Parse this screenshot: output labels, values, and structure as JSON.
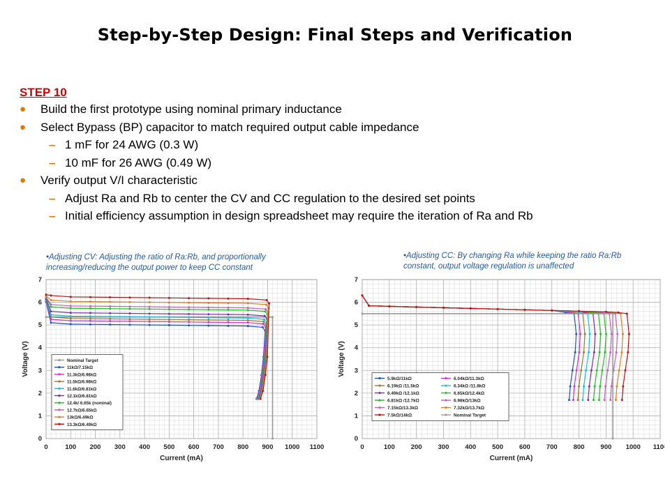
{
  "title": "Step-by-Step Design: Final Steps and Verification",
  "step_label": "STEP 10",
  "bullets": [
    {
      "text": "Build the first prototype using nominal primary inductance"
    },
    {
      "text": "Select Bypass (BP) capacitor to match required output cable impedance",
      "sub": [
        "1 mF for 24 AWG (0.3 W)",
        "10 mF for 26 AWG (0.49 W)"
      ]
    },
    {
      "text": "Verify output V/I characteristic",
      "sub": [
        "Adjust Ra and Rb to center the CV and CC regulation to the desired set points",
        "Initial efficiency assumption in design spreadsheet may require the iteration of Ra and Rb"
      ]
    }
  ],
  "bullet_symbol": "●",
  "sub_bullet_symbol": "–",
  "colors": {
    "step": "#d40000",
    "bullet": "#e07800",
    "caption": "#1f5aa8"
  },
  "chart_data": [
    {
      "type": "line",
      "caption": "•Adjusting CV: Adjusting the ratio of Ra:Rb, and proportionally increasing/reducing  the output power  to keep CC constant",
      "xlabel": "Current (mA)",
      "ylabel": "Voltage (V)",
      "xlim": [
        0,
        1100
      ],
      "ylim": [
        0,
        7
      ],
      "xticks": [
        "0",
        "100",
        "200",
        "300",
        "400",
        "500",
        "600",
        "700",
        "800",
        "900",
        "1000",
        "1100"
      ],
      "yticks": [
        "0",
        "1",
        "2",
        "3",
        "4",
        "5",
        "6",
        "7"
      ],
      "grid": true,
      "legend_position": "bottom-left",
      "series": [
        {
          "name": "Nominal Target",
          "color": "#999999",
          "cv": 5.35,
          "cc": 920,
          "marker": true,
          "target": true
        },
        {
          "name": "11kΩ/7.15kΩ",
          "color": "#1f4fd0",
          "cv": 5.05,
          "cc": 895
        },
        {
          "name": "11.3kΩ/6.98kΩ",
          "color": "#d030d0",
          "cv": 5.2,
          "cc": 897
        },
        {
          "name": "11.5kΩ/6.98kΩ",
          "color": "#9a7a30",
          "cv": 5.3,
          "cc": 899
        },
        {
          "name": "11.6kΩ/6.81kΩ",
          "color": "#10c0e0",
          "cv": 5.4,
          "cc": 901
        },
        {
          "name": "12.1kΩ/6.81kΩ",
          "color": "#7a30a0",
          "cv": 5.55,
          "cc": 903
        },
        {
          "name": "12.4k/ 6.65k (nominal)",
          "color": "#20c020",
          "cv": 5.75,
          "cc": 905
        },
        {
          "name": "12.7kΩ/6.65kΩ",
          "color": "#c060c0",
          "cv": 5.85,
          "cc": 907
        },
        {
          "name": "13kΩ/6.49kΩ",
          "color": "#e08020",
          "cv": 6.05,
          "cc": 909
        },
        {
          "name": "13.3kΩ/6.49kΩ",
          "color": "#c01010",
          "cv": 6.25,
          "cc": 911
        }
      ]
    },
    {
      "type": "line",
      "caption": "•Adjusting CC: By changing Ra while keeping the ratio Ra:Rb constant, output voltage regulation is unaffected",
      "xlabel": "Current (mA)",
      "ylabel": "Voltage (V)",
      "xlim": [
        0,
        1100
      ],
      "ylim": [
        0,
        7
      ],
      "xticks": [
        "0",
        "100",
        "200",
        "300",
        "400",
        "500",
        "600",
        "700",
        "800",
        "900",
        "1000",
        "1100"
      ],
      "yticks": [
        "0",
        "1",
        "2",
        "3",
        "4",
        "5",
        "6",
        "7"
      ],
      "grid": true,
      "legend_position": "bottom-left",
      "series": [
        {
          "name": "5.9kΩ/11kΩ",
          "color": "#1f4fd0",
          "cc": 790
        },
        {
          "name": "6.04kΩ/11.3kΩ",
          "color": "#d030d0",
          "cc": 805
        },
        {
          "name": "6.19kΩ /11.5kΩ",
          "color": "#9a7a30",
          "cc": 822
        },
        {
          "name": "6.34kΩ /11.8kΩ",
          "color": "#10c0e0",
          "cc": 840
        },
        {
          "name": "6.49kΩ /12.1kΩ",
          "color": "#7a30a0",
          "cc": 860
        },
        {
          "name": "6.65kΩ/12.4kΩ",
          "color": "#20c020",
          "cc": 880
        },
        {
          "name": "6.81kΩ /12.7kΩ",
          "color": "#20c020",
          "cc": 900
        },
        {
          "name": "6.98kΩ/13kΩ",
          "color": "#c060c0",
          "cc": 920
        },
        {
          "name": "7.15kΩ/13.3kΩ",
          "color": "#c060c0",
          "cc": 942
        },
        {
          "name": "7.32kΩ/13.7kΩ",
          "color": "#e08020",
          "cc": 962
        },
        {
          "name": "7.5kΩ/14kΩ",
          "color": "#c01010",
          "cc": 985
        },
        {
          "name": "Nominal Target",
          "color": "#999999",
          "cc": 925,
          "target": true
        }
      ]
    }
  ]
}
